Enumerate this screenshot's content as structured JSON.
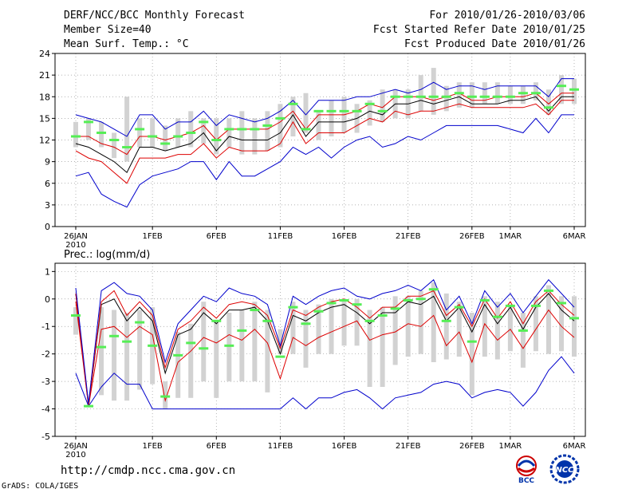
{
  "header": {
    "title": "DERF/NCC/BCC Monthly Forecast",
    "member_size": "Member Size=40",
    "variable": "Mean Surf. Temp.: °C",
    "forecast_range": "For 2010/01/26-2010/03/06",
    "start_date": "Fcst Started Refer Date 2010/01/25",
    "produced_date": "Fcst Produced Date 2010/01/26"
  },
  "footer": {
    "url": "http://cmdp.ncc.cma.gov.cn",
    "grads_credit": "GrADS: COLA/IGES",
    "logo_bcc": "BCC",
    "logo_ncc": "NCC"
  },
  "colors": {
    "box": "#d2d2d2",
    "median": "#55ee55",
    "mean": "#000000",
    "spread": "#dd0000",
    "extreme": "#0000cc",
    "grid": "#999999"
  },
  "chart_data": [
    {
      "type": "line",
      "title": "Mean Surf. Temp.: °C",
      "xlabel": "",
      "ylabel": "°C",
      "ylim": [
        0,
        24
      ],
      "yticks": [
        0,
        3,
        6,
        9,
        12,
        15,
        18,
        21,
        24
      ],
      "xtick_labels": [
        "26JAN",
        "1FEB",
        "6FEB",
        "11FEB",
        "16FEB",
        "21FEB",
        "26FEB",
        "1MAR",
        "6MAR"
      ],
      "xtick_days": [
        0,
        6,
        11,
        16,
        21,
        26,
        31,
        34,
        39
      ],
      "year_label": "2010",
      "days": [
        0,
        1,
        2,
        3,
        4,
        5,
        6,
        7,
        8,
        9,
        10,
        11,
        12,
        13,
        14,
        15,
        16,
        17,
        18,
        19,
        20,
        21,
        22,
        23,
        24,
        25,
        26,
        27,
        28,
        29,
        30,
        31,
        32,
        33,
        34,
        35,
        36,
        37,
        38,
        39
      ],
      "box_low": [
        11,
        12,
        11,
        9.5,
        9,
        11,
        11,
        10.5,
        11,
        11,
        11.5,
        10,
        11,
        10,
        10,
        10.5,
        11,
        12.5,
        13,
        12,
        12.5,
        13,
        13,
        14,
        14.5,
        15,
        15,
        16,
        15.5,
        16,
        16.5,
        16.5,
        17,
        17,
        17,
        17,
        17.5,
        15.5,
        17,
        17
      ],
      "box_high": [
        14.5,
        15,
        14.5,
        13,
        18,
        15,
        15,
        14,
        15,
        16,
        15,
        15,
        15,
        16,
        15,
        16,
        17,
        18,
        18.5,
        16,
        17.5,
        18,
        17,
        17.5,
        19,
        19,
        19,
        21,
        22,
        19.5,
        20,
        20,
        20,
        20,
        19.5,
        19.5,
        20,
        19,
        21,
        20.5
      ],
      "median": [
        12.5,
        14.5,
        13,
        12,
        11,
        13.5,
        12.5,
        11.5,
        12.5,
        13,
        14.5,
        12,
        13.5,
        13.5,
        13.5,
        14,
        15,
        17,
        13.5,
        16,
        16,
        16,
        16,
        17,
        16,
        18,
        18,
        18,
        18,
        18,
        18.5,
        18,
        18,
        18,
        18,
        18.5,
        18.5,
        16.5,
        19.5,
        19
      ],
      "series": [
        {
          "name": "ensemble-mean",
          "color": "#000000",
          "values": [
            11.5,
            11,
            10,
            9,
            7.5,
            11,
            11,
            10.5,
            11,
            11.5,
            13,
            10.5,
            12.5,
            12,
            12,
            12,
            13,
            15.5,
            12.5,
            14.5,
            14.5,
            14.5,
            15,
            16,
            15.5,
            17,
            17,
            17.5,
            17,
            17.5,
            18,
            17,
            17,
            17,
            17.5,
            17.5,
            18,
            16,
            18,
            18
          ]
        },
        {
          "name": "mean-plus-sd",
          "color": "#dd0000",
          "values": [
            12.5,
            12.5,
            11.5,
            11,
            10,
            12.5,
            12.5,
            12,
            12.5,
            13,
            14,
            12,
            13.5,
            13.5,
            13.5,
            13.5,
            14.5,
            16,
            13.5,
            15.5,
            15.5,
            15.5,
            16,
            17,
            16.5,
            18,
            18,
            18,
            17.5,
            18,
            18.5,
            17.5,
            17.5,
            18,
            18,
            18,
            18.5,
            17,
            18.5,
            18.5
          ]
        },
        {
          "name": "mean-minus-sd",
          "color": "#dd0000",
          "values": [
            10.5,
            9.5,
            9,
            7.5,
            6,
            9.5,
            9.5,
            9.5,
            10,
            10,
            11.5,
            9.5,
            11,
            10.5,
            10.5,
            10.5,
            11.5,
            14.5,
            11.5,
            13,
            13,
            13,
            14,
            15,
            14.5,
            16,
            15.5,
            16,
            16,
            16.5,
            17,
            16.5,
            16.5,
            16.5,
            16.5,
            16.5,
            17,
            15.5,
            17.5,
            17.5
          ]
        },
        {
          "name": "maximum",
          "color": "#0000cc",
          "values": [
            15.5,
            15,
            14.5,
            13.5,
            12.5,
            15.5,
            15.5,
            13.5,
            14.5,
            14.5,
            16,
            14,
            15.5,
            15,
            14.5,
            15,
            16,
            17.5,
            15.5,
            17.5,
            17.5,
            17.5,
            18,
            18,
            18.5,
            19,
            18.5,
            19,
            20,
            19,
            19.5,
            19.5,
            19,
            19.5,
            19.5,
            19.5,
            19.5,
            18,
            20.5,
            20.5
          ]
        },
        {
          "name": "minimum",
          "color": "#0000cc",
          "values": [
            7,
            7.5,
            4.5,
            3.5,
            2.7,
            5.8,
            7,
            7.5,
            8,
            9,
            9,
            6.5,
            9,
            7,
            7,
            8,
            9,
            11,
            10,
            11,
            9.5,
            11,
            12,
            12.5,
            11,
            11.5,
            12.5,
            12,
            13,
            14,
            14,
            14,
            14,
            14,
            13.5,
            13,
            15,
            13,
            15.5,
            15.5
          ]
        }
      ]
    },
    {
      "type": "line",
      "title": "Prec.: log(mm/d)",
      "xlabel": "",
      "ylabel": "log(mm/d)",
      "ylim": [
        -5,
        1.3
      ],
      "yticks": [
        -5,
        -4,
        -3,
        -2,
        -1,
        0,
        1
      ],
      "xtick_labels": [
        "26JAN",
        "1FEB",
        "6FEB",
        "11FEB",
        "16FEB",
        "21FEB",
        "26FEB",
        "1MAR",
        "6MAR"
      ],
      "xtick_days": [
        0,
        6,
        11,
        16,
        21,
        26,
        31,
        34,
        39
      ],
      "year_label": "2010",
      "days": [
        0,
        1,
        2,
        3,
        4,
        5,
        6,
        7,
        8,
        9,
        10,
        11,
        12,
        13,
        14,
        15,
        16,
        17,
        18,
        19,
        20,
        21,
        22,
        23,
        24,
        25,
        26,
        27,
        28,
        29,
        30,
        31,
        32,
        33,
        34,
        35,
        36,
        37,
        38,
        39
      ],
      "box_low": [
        -1.3,
        -3.9,
        -3.5,
        -3.7,
        -3.7,
        -3.3,
        -3.1,
        -4,
        -3.6,
        -3.6,
        -3,
        -3.6,
        -3,
        -3,
        -3,
        -3.4,
        -2,
        -2,
        -2.5,
        -2,
        -2,
        -1.7,
        -1.7,
        -3.2,
        -3.2,
        -2.4,
        -2.1,
        -2,
        -2.3,
        -2.2,
        -2.1,
        -3.5,
        -2.1,
        -2.2,
        -1.9,
        -2.5,
        -1.9,
        -2,
        -1.9,
        -2.1
      ],
      "box_high": [
        -0.3,
        -3.9,
        -0.3,
        -0.4,
        -0.5,
        -0.4,
        -0.3,
        -3,
        -1.2,
        -0.9,
        -0.1,
        -0.8,
        -0.5,
        -0.4,
        -0.1,
        -0.4,
        -1.1,
        -0.1,
        -0.4,
        -0.2,
        0,
        0,
        0,
        -0.4,
        -0.3,
        0.1,
        0.1,
        0.3,
        0.6,
        0.2,
        -0.1,
        -0.5,
        0.1,
        -0.1,
        -0.2,
        -0.5,
        0.1,
        0.5,
        0.1,
        0.1
      ],
      "median": [
        -0.6,
        -3.9,
        -1.75,
        -1.35,
        -1.55,
        -0.85,
        -1.7,
        -3.55,
        -2.05,
        -1.6,
        -1.8,
        -0.8,
        -1.7,
        -1.15,
        -0.4,
        -0.8,
        -2.1,
        -0.3,
        -0.9,
        -0.45,
        -0.15,
        -0.05,
        -0.2,
        -0.8,
        -0.6,
        -0.35,
        -0.05,
        0,
        0.35,
        -0.8,
        -0.3,
        -1.55,
        -0.05,
        -0.65,
        -0.25,
        -1.15,
        -0.25,
        0.3,
        -0.15,
        -0.7
      ],
      "series": [
        {
          "name": "ensemble-mean",
          "color": "#000000",
          "values": [
            0.2,
            -3.9,
            -0.2,
            0,
            -0.8,
            -0.3,
            -0.8,
            -2.7,
            -1.3,
            -1.1,
            -0.5,
            -0.9,
            -0.4,
            -0.4,
            -0.3,
            -0.8,
            -2,
            -0.6,
            -0.8,
            -0.5,
            -0.3,
            -0.2,
            -0.5,
            -0.9,
            -0.5,
            -0.5,
            -0.1,
            -0.2,
            0.1,
            -0.8,
            -0.3,
            -1.2,
            -0.2,
            -0.9,
            -0.3,
            -1.1,
            -0.3,
            0.2,
            -0.4,
            -0.8
          ]
        },
        {
          "name": "mean-plus-sd",
          "color": "#dd0000",
          "values": [
            0.2,
            -3.9,
            -0.1,
            0.3,
            -0.6,
            -0.1,
            -0.6,
            -2.5,
            -1.1,
            -0.8,
            -0.3,
            -0.7,
            -0.2,
            -0.1,
            -0.2,
            -0.6,
            -1.8,
            -0.4,
            -0.6,
            -0.3,
            -0.1,
            0,
            -0.3,
            -0.7,
            -0.3,
            -0.3,
            0.1,
            0.1,
            0.3,
            -0.6,
            -0.2,
            -1,
            0,
            -0.7,
            -0.1,
            -0.9,
            -0.1,
            0.3,
            -0.2,
            -0.6
          ]
        },
        {
          "name": "mean-minus-sd",
          "color": "#dd0000",
          "values": [
            -0.1,
            -3.9,
            -1.1,
            -1,
            -1.4,
            -1,
            -1.3,
            -3.7,
            -2.3,
            -1.9,
            -1.4,
            -1.6,
            -1.3,
            -1.5,
            -1.1,
            -1.6,
            -2.9,
            -1.4,
            -1.7,
            -1.4,
            -1.2,
            -1,
            -0.8,
            -1.5,
            -1.3,
            -1.2,
            -0.9,
            -1,
            -0.6,
            -1.7,
            -1.2,
            -2.3,
            -0.9,
            -1.5,
            -1.1,
            -1.8,
            -1.1,
            -0.4,
            -1,
            -1.4
          ]
        },
        {
          "name": "maximum",
          "color": "#0000cc",
          "values": [
            0.4,
            -3.8,
            0.3,
            0.6,
            0.2,
            0.1,
            -0.4,
            -2.3,
            -0.9,
            -0.4,
            0.1,
            -0.1,
            0.4,
            0.2,
            0.1,
            -0.2,
            -1.7,
            0.1,
            -0.2,
            0.1,
            0.3,
            0.4,
            0.1,
            0,
            0.2,
            0.3,
            0.5,
            0.3,
            0.7,
            -0.4,
            0.1,
            -0.9,
            0.3,
            -0.3,
            0.2,
            -0.5,
            0.1,
            0.7,
            0.2,
            -0.3
          ]
        },
        {
          "name": "minimum",
          "color": "#0000cc",
          "values": [
            -2.7,
            -3.9,
            -3.2,
            -2.7,
            -3.1,
            -3.1,
            -4,
            -4,
            -4,
            -4,
            -4,
            -4,
            -4,
            -4,
            -4,
            -4,
            -4,
            -3.6,
            -4,
            -3.6,
            -3.6,
            -3.4,
            -3.3,
            -3.6,
            -4,
            -3.6,
            -3.5,
            -3.4,
            -3.1,
            -3,
            -3.1,
            -3.6,
            -3.4,
            -3.3,
            -3.4,
            -3.9,
            -3.4,
            -2.6,
            -2.1,
            -2.7
          ]
        }
      ]
    }
  ]
}
